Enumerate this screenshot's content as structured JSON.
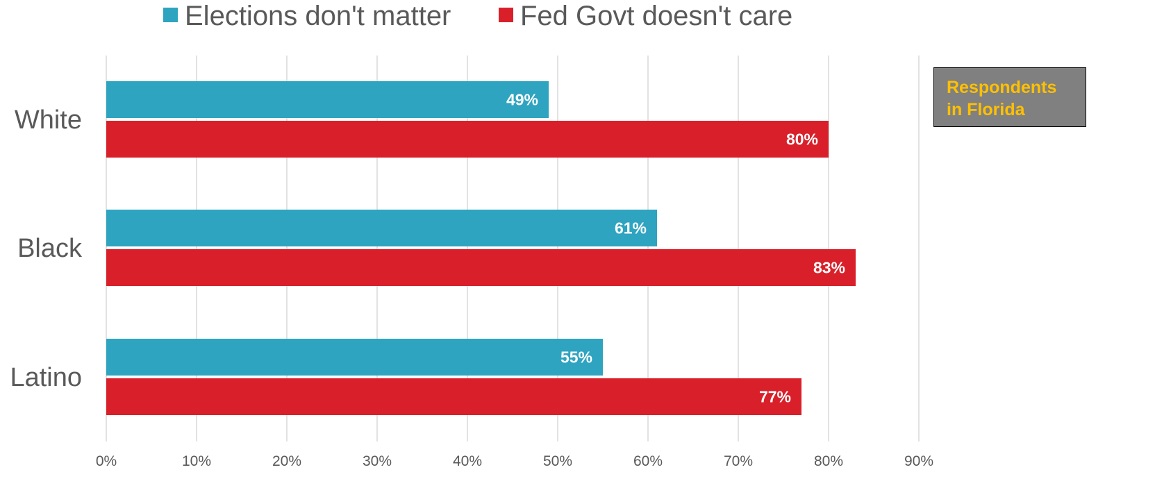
{
  "chart_data": {
    "type": "bar",
    "orientation": "horizontal",
    "categories": [
      "White",
      "Black",
      "Latino"
    ],
    "series": [
      {
        "name": "Elections don't matter",
        "color": "#2ea4c0",
        "values": [
          49,
          61,
          55
        ],
        "labels": [
          "49%",
          "61%",
          "55%"
        ]
      },
      {
        "name": "Fed Govt doesn't care",
        "color": "#d9202a",
        "values": [
          80,
          83,
          77
        ],
        "labels": [
          "80%",
          "83%",
          "77%"
        ]
      }
    ],
    "x_ticks": [
      "0%",
      "10%",
      "20%",
      "30%",
      "40%",
      "50%",
      "60%",
      "70%",
      "80%",
      "90%"
    ],
    "xlim": [
      0,
      90
    ],
    "grid": "vertical",
    "legend_position": "top",
    "annotation": {
      "line1": "Respondents",
      "line2": "in Florida"
    }
  }
}
